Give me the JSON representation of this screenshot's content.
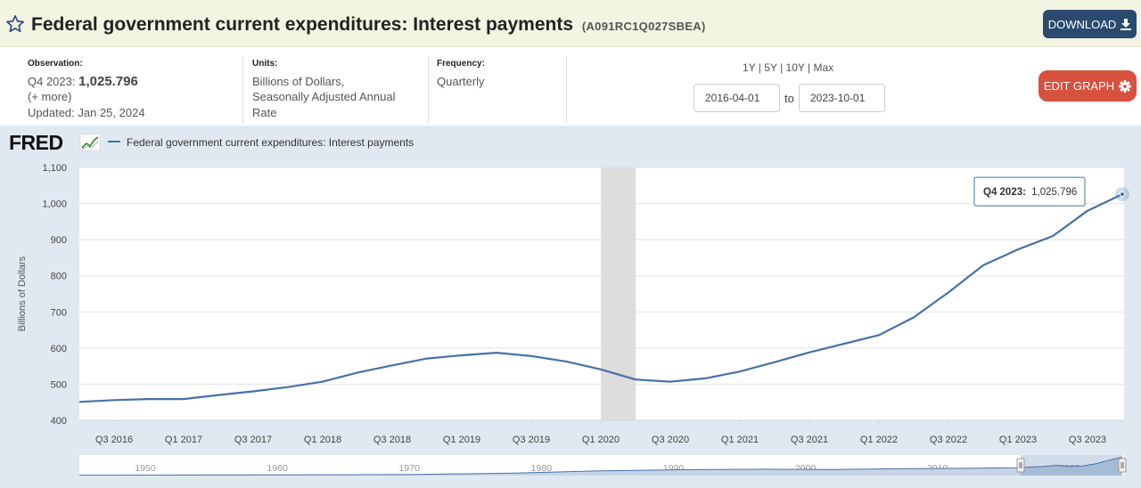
{
  "header": {
    "title": "Federal government current expenditures: Interest payments",
    "series_id": "(A091RC1Q027SBEA)",
    "download_label": "DOWNLOAD"
  },
  "meta": {
    "observation_label": "Observation:",
    "observation_period": "Q4 2023:",
    "observation_value": "1,025.796",
    "more": "(+ more)",
    "updated": "Updated: Jan 25, 2024",
    "units_label": "Units:",
    "units_lines": [
      "Billions of Dollars,",
      "Seasonally Adjusted Annual",
      "Rate"
    ],
    "frequency_label": "Frequency:",
    "frequency": "Quarterly"
  },
  "controls": {
    "ranges": [
      "1Y",
      "5Y",
      "10Y",
      "Max"
    ],
    "start_date": "2016-04-01",
    "to_label": "to",
    "end_date": "2023-10-01",
    "edit_label": "EDIT GRAPH"
  },
  "colors": {
    "line": "#4572a7",
    "recession": "#dddddd",
    "edit": "#d7513e",
    "download": "#2a4a6f"
  },
  "chart_data": {
    "type": "line",
    "brand": "FRED",
    "legend": "Federal government current expenditures: Interest payments",
    "ylabel": "Billions of Dollars",
    "ylim": [
      400,
      1100
    ],
    "yticks": [
      400,
      500,
      600,
      700,
      800,
      900,
      "1,000",
      "1,100"
    ],
    "x": [
      "Q2 2016",
      "Q3 2016",
      "Q4 2016",
      "Q1 2017",
      "Q2 2017",
      "Q3 2017",
      "Q4 2017",
      "Q1 2018",
      "Q2 2018",
      "Q3 2018",
      "Q4 2018",
      "Q1 2019",
      "Q2 2019",
      "Q3 2019",
      "Q4 2019",
      "Q1 2020",
      "Q2 2020",
      "Q3 2020",
      "Q4 2020",
      "Q1 2021",
      "Q2 2021",
      "Q3 2021",
      "Q4 2021",
      "Q1 2022",
      "Q2 2022",
      "Q3 2022",
      "Q4 2022",
      "Q1 2023",
      "Q2 2023",
      "Q3 2023",
      "Q4 2023"
    ],
    "values": [
      451,
      456,
      459,
      459,
      470,
      480,
      492,
      507,
      532,
      552,
      571,
      580,
      587,
      578,
      563,
      541,
      513,
      507,
      516,
      535,
      561,
      588,
      612,
      636,
      685,
      754,
      829,
      873,
      910,
      980,
      1025.796
    ],
    "xtick_labels": [
      "Q3 2016",
      "Q1 2017",
      "Q3 2017",
      "Q1 2018",
      "Q3 2018",
      "Q1 2019",
      "Q3 2019",
      "Q1 2020",
      "Q3 2020",
      "Q1 2021",
      "Q3 2021",
      "Q1 2022",
      "Q3 2022",
      "Q1 2023",
      "Q3 2023"
    ],
    "recession": [
      "Q1 2020",
      "Q2 2020"
    ],
    "tooltip": {
      "period": "Q4 2023:",
      "value": "1,025.796"
    },
    "overview_years": [
      "1950",
      "1960",
      "1970",
      "1980",
      "1990",
      "2000",
      "2010",
      "2020"
    ]
  }
}
